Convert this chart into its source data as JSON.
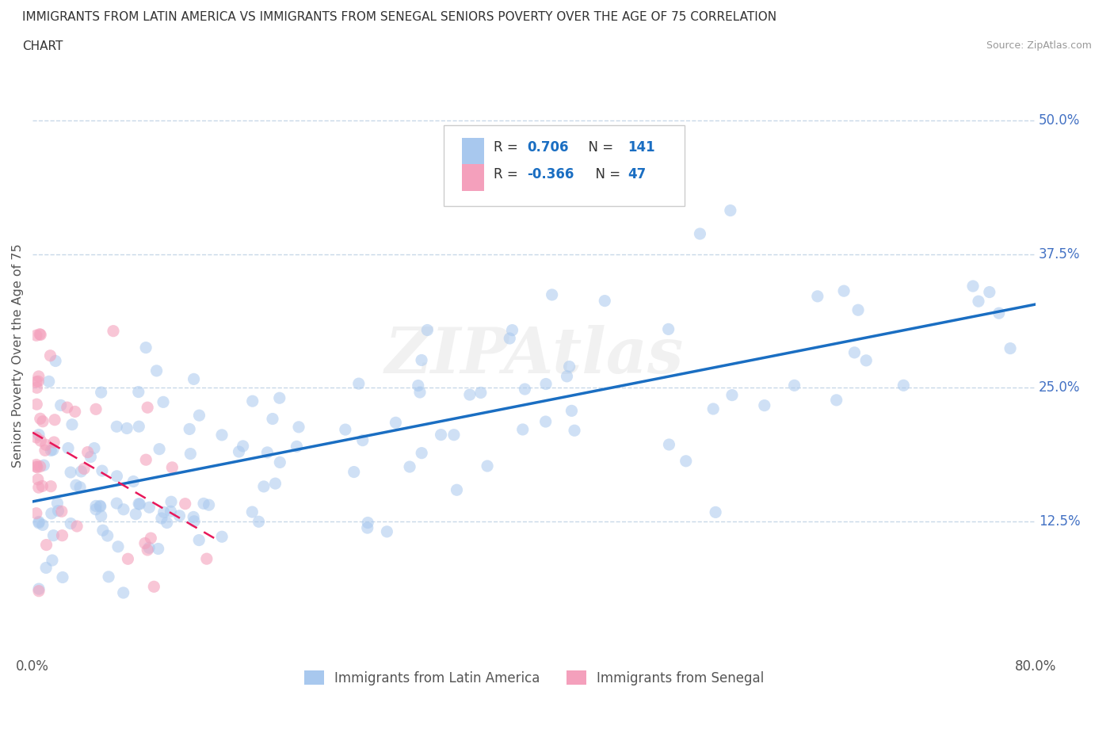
{
  "title_line1": "IMMIGRANTS FROM LATIN AMERICA VS IMMIGRANTS FROM SENEGAL SENIORS POVERTY OVER THE AGE OF 75 CORRELATION",
  "title_line2": "CHART",
  "source_text": "Source: ZipAtlas.com",
  "ylabel": "Seniors Poverty Over the Age of 75",
  "watermark": "ZIPAtlas",
  "xlim": [
    0.0,
    0.8
  ],
  "ylim": [
    0.0,
    0.56
  ],
  "ytick_positions": [
    0.125,
    0.25,
    0.375,
    0.5
  ],
  "ytick_labels": [
    "12.5%",
    "25.0%",
    "37.5%",
    "50.0%"
  ],
  "latin_america_color": "#A8C8EE",
  "senegal_color": "#F4A0BC",
  "latin_america_line_color": "#1A6EC2",
  "senegal_line_color": "#E8185A",
  "R_latin": "0.706",
  "N_latin": "141",
  "R_senegal": "-0.366",
  "N_senegal": "47",
  "background_color": "#FFFFFF",
  "grid_color": "#C8D8E8",
  "title_color": "#333333",
  "tick_label_color": "#4472C4",
  "legend_label1": "Immigrants from Latin America",
  "legend_label2": "Immigrants from Senegal"
}
